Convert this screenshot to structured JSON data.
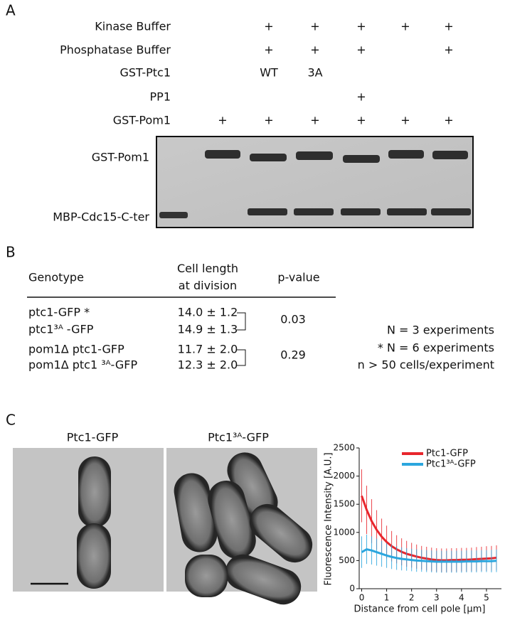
{
  "panel_labels": [
    "A",
    "B",
    "C"
  ],
  "panel_a": {
    "rows": [
      {
        "label": "Kinase Buffer",
        "cells": [
          null,
          null,
          "+",
          "+",
          "+",
          "+",
          "+"
        ]
      },
      {
        "label": "Phosphatase Buffer",
        "cells": [
          null,
          null,
          "+",
          "+",
          "+",
          null,
          "+"
        ]
      },
      {
        "label": "GST-Ptc1",
        "cells": [
          null,
          null,
          "WT",
          "3A",
          null,
          null,
          null
        ]
      },
      {
        "label": "PP1",
        "cells": [
          null,
          null,
          null,
          null,
          "+",
          null,
          null
        ]
      },
      {
        "label": "GST-Pom1",
        "cells": [
          null,
          "+",
          "+",
          "+",
          "+",
          "+",
          "+"
        ]
      }
    ],
    "gel_labels": [
      "GST-Pom1",
      "MBP-Cdc15-C-ter"
    ]
  },
  "panel_b": {
    "header": [
      "Genotype",
      "Cell length\nat division",
      "p-value"
    ],
    "rows": [
      [
        "ptc1-GFP  *",
        "14.0 ± 1.2"
      ],
      [
        "ptc1³ᴬ -GFP",
        "14.9 ± 1.3"
      ],
      [
        "pom1Δ ptc1-GFP",
        "11.7 ± 2.0"
      ],
      [
        "pom1Δ ptc1 ³ᴬ-GFP",
        "12.3 ± 2.0"
      ]
    ],
    "p_values": [
      "0.03",
      "0.29"
    ],
    "notes": [
      "N = 3 experiments",
      "* N = 6 experiments",
      "n > 50 cells/experiment"
    ]
  },
  "panel_c": {
    "image_titles": [
      "Ptc1-GFP",
      "Ptc1³ᴬ-GFP"
    ]
  },
  "chart_data": {
    "type": "line",
    "xlabel": "Distance from cell pole [µm]",
    "ylabel": "Fluorescence Intensity [A.U.]",
    "x": [
      0,
      0.2,
      0.4,
      0.6,
      0.8,
      1.0,
      1.2,
      1.4,
      1.6,
      1.8,
      2.0,
      2.2,
      2.4,
      2.6,
      2.8,
      3.0,
      3.2,
      3.4,
      3.6,
      3.8,
      4.0,
      4.2,
      4.4,
      4.6,
      4.8,
      5.0,
      5.2,
      5.4
    ],
    "series": [
      {
        "name": "Ptc1-GFP",
        "color": "#e8262d",
        "values": [
          1650,
          1400,
          1200,
          1045,
          925,
          830,
          755,
          700,
          655,
          620,
          595,
          570,
          550,
          535,
          520,
          510,
          505,
          505,
          510,
          510,
          515,
          515,
          520,
          525,
          530,
          535,
          540,
          550
        ],
        "errors": [
          470,
          430,
          390,
          350,
          320,
          290,
          270,
          250,
          240,
          230,
          220,
          215,
          210,
          210,
          210,
          210,
          210,
          210,
          210,
          210,
          210,
          210,
          210,
          215,
          215,
          220,
          220,
          220
        ]
      },
      {
        "name": "Ptc1³ᴬ-GFP",
        "color": "#2ba6de",
        "values": [
          650,
          700,
          680,
          650,
          620,
          590,
          565,
          545,
          530,
          520,
          510,
          500,
          495,
          490,
          485,
          480,
          480,
          480,
          480,
          480,
          480,
          485,
          485,
          485,
          490,
          490,
          490,
          495
        ],
        "errors": [
          280,
          260,
          250,
          240,
          230,
          220,
          215,
          210,
          205,
          200,
          200,
          200,
          195,
          195,
          195,
          195,
          195,
          195,
          195,
          195,
          195,
          195,
          195,
          195,
          195,
          195,
          200,
          200
        ]
      }
    ],
    "xlim": [
      -0.1,
      5.6
    ],
    "xticks": [
      0,
      1,
      2,
      3,
      4,
      5
    ],
    "ylim": [
      0,
      2500
    ],
    "yticks": [
      0,
      500,
      1000,
      1500,
      2000,
      2500
    ],
    "legend": "upper right"
  }
}
